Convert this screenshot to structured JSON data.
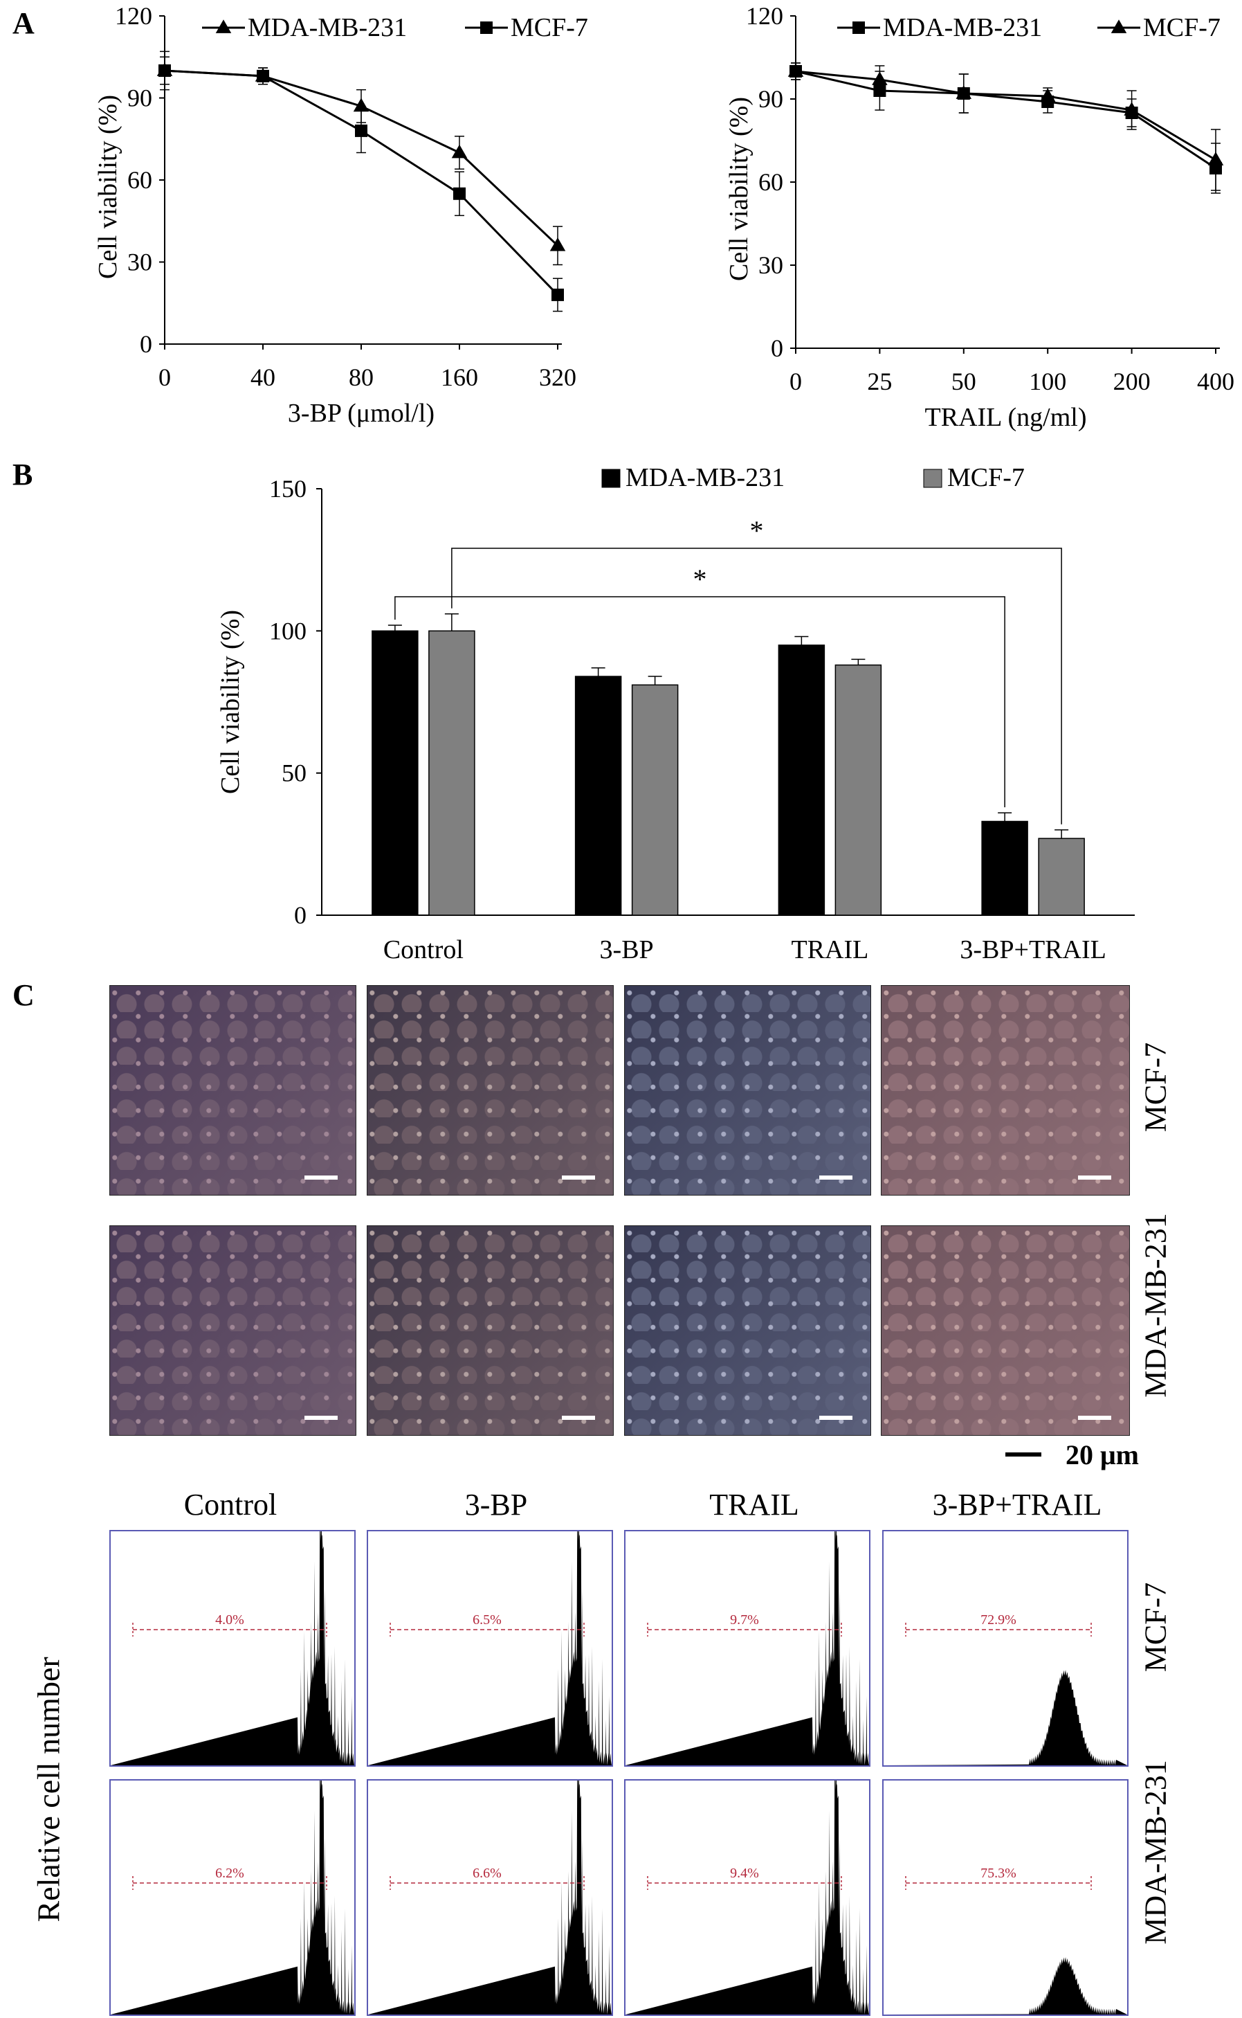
{
  "panels": {
    "a": "A",
    "b": "B",
    "c": "C"
  },
  "colors": {
    "black_bar": "#000000",
    "gray_bar": "#808080",
    "flow_border": "#5a5ab4",
    "flow_pct": "#b4283c"
  },
  "chart_data": [
    {
      "type": "line",
      "x_categories": [
        "0",
        "40",
        "80",
        "160",
        "320"
      ],
      "xlabel": "3-BP (μmol/l)",
      "ylabel": "Cell viability  (%)",
      "ylim": [
        0,
        120
      ],
      "yticks": [
        "0",
        "30",
        "60",
        "90",
        "120"
      ],
      "legend_position": "top",
      "series": [
        {
          "name": "MDA-MB-231",
          "marker": "triangle",
          "values": [
            100,
            98,
            87,
            70,
            36
          ],
          "errors": [
            7,
            3,
            6,
            6,
            7
          ]
        },
        {
          "name": "MCF-7",
          "marker": "square",
          "values": [
            100,
            98,
            78,
            55,
            18
          ],
          "errors": [
            5,
            3,
            8,
            8,
            6
          ]
        }
      ]
    },
    {
      "type": "line",
      "x_categories": [
        "0",
        "25",
        "50",
        "100",
        "200",
        "400"
      ],
      "xlabel": "TRAIL (ng/ml)",
      "ylabel": "Cell viability  (%)",
      "ylim": [
        0,
        120
      ],
      "yticks": [
        "0",
        "30",
        "60",
        "90",
        "120"
      ],
      "legend_position": "top",
      "series": [
        {
          "name": "MDA-MB-231",
          "marker": "square",
          "values": [
            100,
            93,
            92,
            89,
            85,
            65
          ],
          "errors": [
            3,
            7,
            7,
            4,
            5,
            9
          ]
        },
        {
          "name": "MCF-7",
          "marker": "triangle",
          "values": [
            100,
            97,
            92,
            91,
            86,
            68
          ],
          "errors": [
            3,
            5,
            7,
            3,
            7,
            11
          ]
        }
      ]
    },
    {
      "type": "bar",
      "categories": [
        "Control",
        "3-BP",
        "TRAIL",
        "3-BP+TRAIL"
      ],
      "ylabel": "Cell viability  (%)",
      "ylim": [
        0,
        150
      ],
      "yticks": [
        "0",
        "50",
        "100",
        "150"
      ],
      "legend_position": "top",
      "series": [
        {
          "name": "MDA-MB-231",
          "values": [
            100,
            84,
            95,
            33
          ],
          "errors": [
            2,
            3,
            3,
            3
          ]
        },
        {
          "name": "MCF-7",
          "values": [
            100,
            81,
            88,
            27
          ],
          "errors": [
            6,
            3,
            2,
            3
          ]
        }
      ],
      "annotations": [
        {
          "text": "*",
          "from": "Control (MDA-MB-231)",
          "to": "3-BP+TRAIL (MDA-MB-231)"
        },
        {
          "text": "*",
          "from": "Control (MCF-7)",
          "to": "3-BP+TRAIL (MCF-7)"
        }
      ]
    }
  ],
  "micrographs": {
    "rows": [
      "MCF-7",
      "MDA-MB-231"
    ],
    "scale_bar": "20 μm"
  },
  "flow": {
    "columns": [
      "Control",
      "3-BP",
      "TRAIL",
      "3-BP+TRAIL"
    ],
    "rows": [
      "MCF-7",
      "MDA-MB-231"
    ],
    "ylabel": "Relative cell number",
    "percent": [
      [
        "4.0%",
        "6.5%",
        "9.7%",
        "72.9%"
      ],
      [
        "6.2%",
        "6.6%",
        "9.4%",
        "75.3%"
      ]
    ]
  }
}
